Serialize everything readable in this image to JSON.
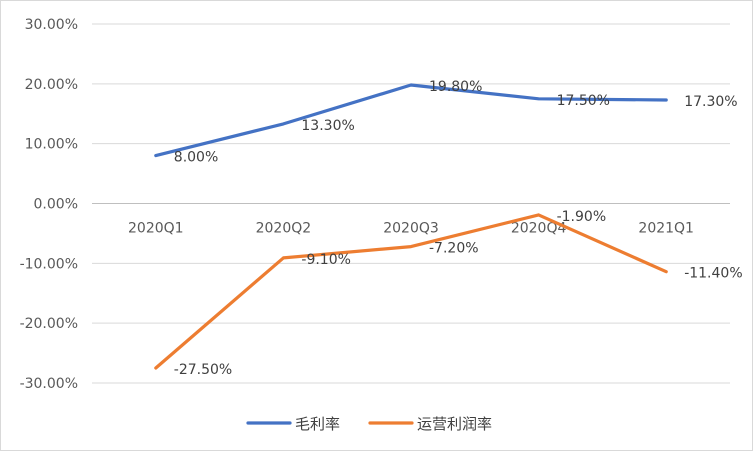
{
  "chart_data": {
    "type": "line",
    "title": "",
    "xlabel": "",
    "ylabel": "",
    "categories": [
      "2020Q1",
      "2020Q2",
      "2020Q3",
      "2020Q4",
      "2021Q1"
    ],
    "yticks": [
      "30.00%",
      "20.00%",
      "10.00%",
      "0.00%",
      "-10.00%",
      "-20.00%",
      "-30.00%"
    ],
    "ylim": [
      -30,
      30
    ],
    "grid": true,
    "legend_position": "bottom",
    "series": [
      {
        "name": "毛利率",
        "color": "#4472C4",
        "values": [
          8.0,
          13.3,
          19.8,
          17.5,
          17.3
        ],
        "labels": [
          "8.00%",
          "13.30%",
          "19.80%",
          "17.50%",
          "17.30%"
        ]
      },
      {
        "name": "运营利润率",
        "color": "#ED7D31",
        "values": [
          -27.5,
          -9.1,
          -7.2,
          -1.9,
          -11.4
        ],
        "labels": [
          "-27.50%",
          "-9.10%",
          "-7.20%",
          "-1.90%",
          "-11.40%"
        ]
      }
    ]
  }
}
